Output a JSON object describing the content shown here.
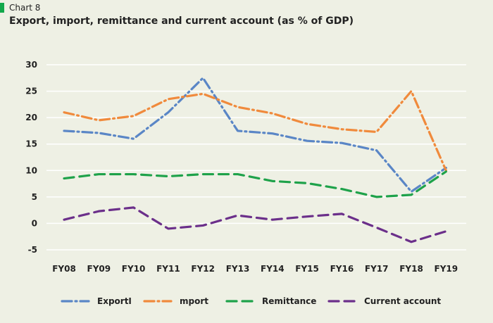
{
  "header": {
    "chart_number": "Chart 8",
    "title": "Export, import, remittance and current account (as % of GDP)"
  },
  "chart_data": {
    "type": "line",
    "title": "Export, import, remittance and current account (as % of GDP)",
    "xlabel": "",
    "ylabel": "",
    "categories": [
      "FY08",
      "FY09",
      "FY10",
      "FY11",
      "FY12",
      "FY13",
      "FY14",
      "FY15",
      "FY16",
      "FY17",
      "FY18",
      "FY19"
    ],
    "y_ticks": [
      "30",
      "25",
      "20",
      "15",
      "10",
      "5",
      "0",
      "-5"
    ],
    "ylim": [
      -5,
      30
    ],
    "grid": true,
    "legend_position": "bottom",
    "series": [
      {
        "name": "ExportI",
        "color": "#5a86c6",
        "style": "dash-dot",
        "values": [
          17.5,
          17.1,
          16.0,
          21.0,
          27.5,
          17.5,
          17.0,
          15.6,
          15.2,
          13.8,
          6.0,
          10.5
        ]
      },
      {
        "name": "mport",
        "color": "#f08a3c",
        "style": "dash-dot",
        "values": [
          21.0,
          19.5,
          20.3,
          23.5,
          24.5,
          22.0,
          20.8,
          18.8,
          17.8,
          17.3,
          25.0,
          10.0
        ]
      },
      {
        "name": "Remittance",
        "color": "#1ea24a",
        "style": "dash",
        "values": [
          8.5,
          9.3,
          9.3,
          8.9,
          9.3,
          9.3,
          8.0,
          7.6,
          6.5,
          5.0,
          5.4,
          9.8
        ]
      },
      {
        "name": "Current account",
        "color": "#6b2f8a",
        "style": "dash",
        "values": [
          0.7,
          2.3,
          3.0,
          -1.0,
          -0.4,
          1.5,
          0.7,
          1.3,
          1.8,
          -0.8,
          -3.5,
          -1.5
        ]
      }
    ]
  }
}
